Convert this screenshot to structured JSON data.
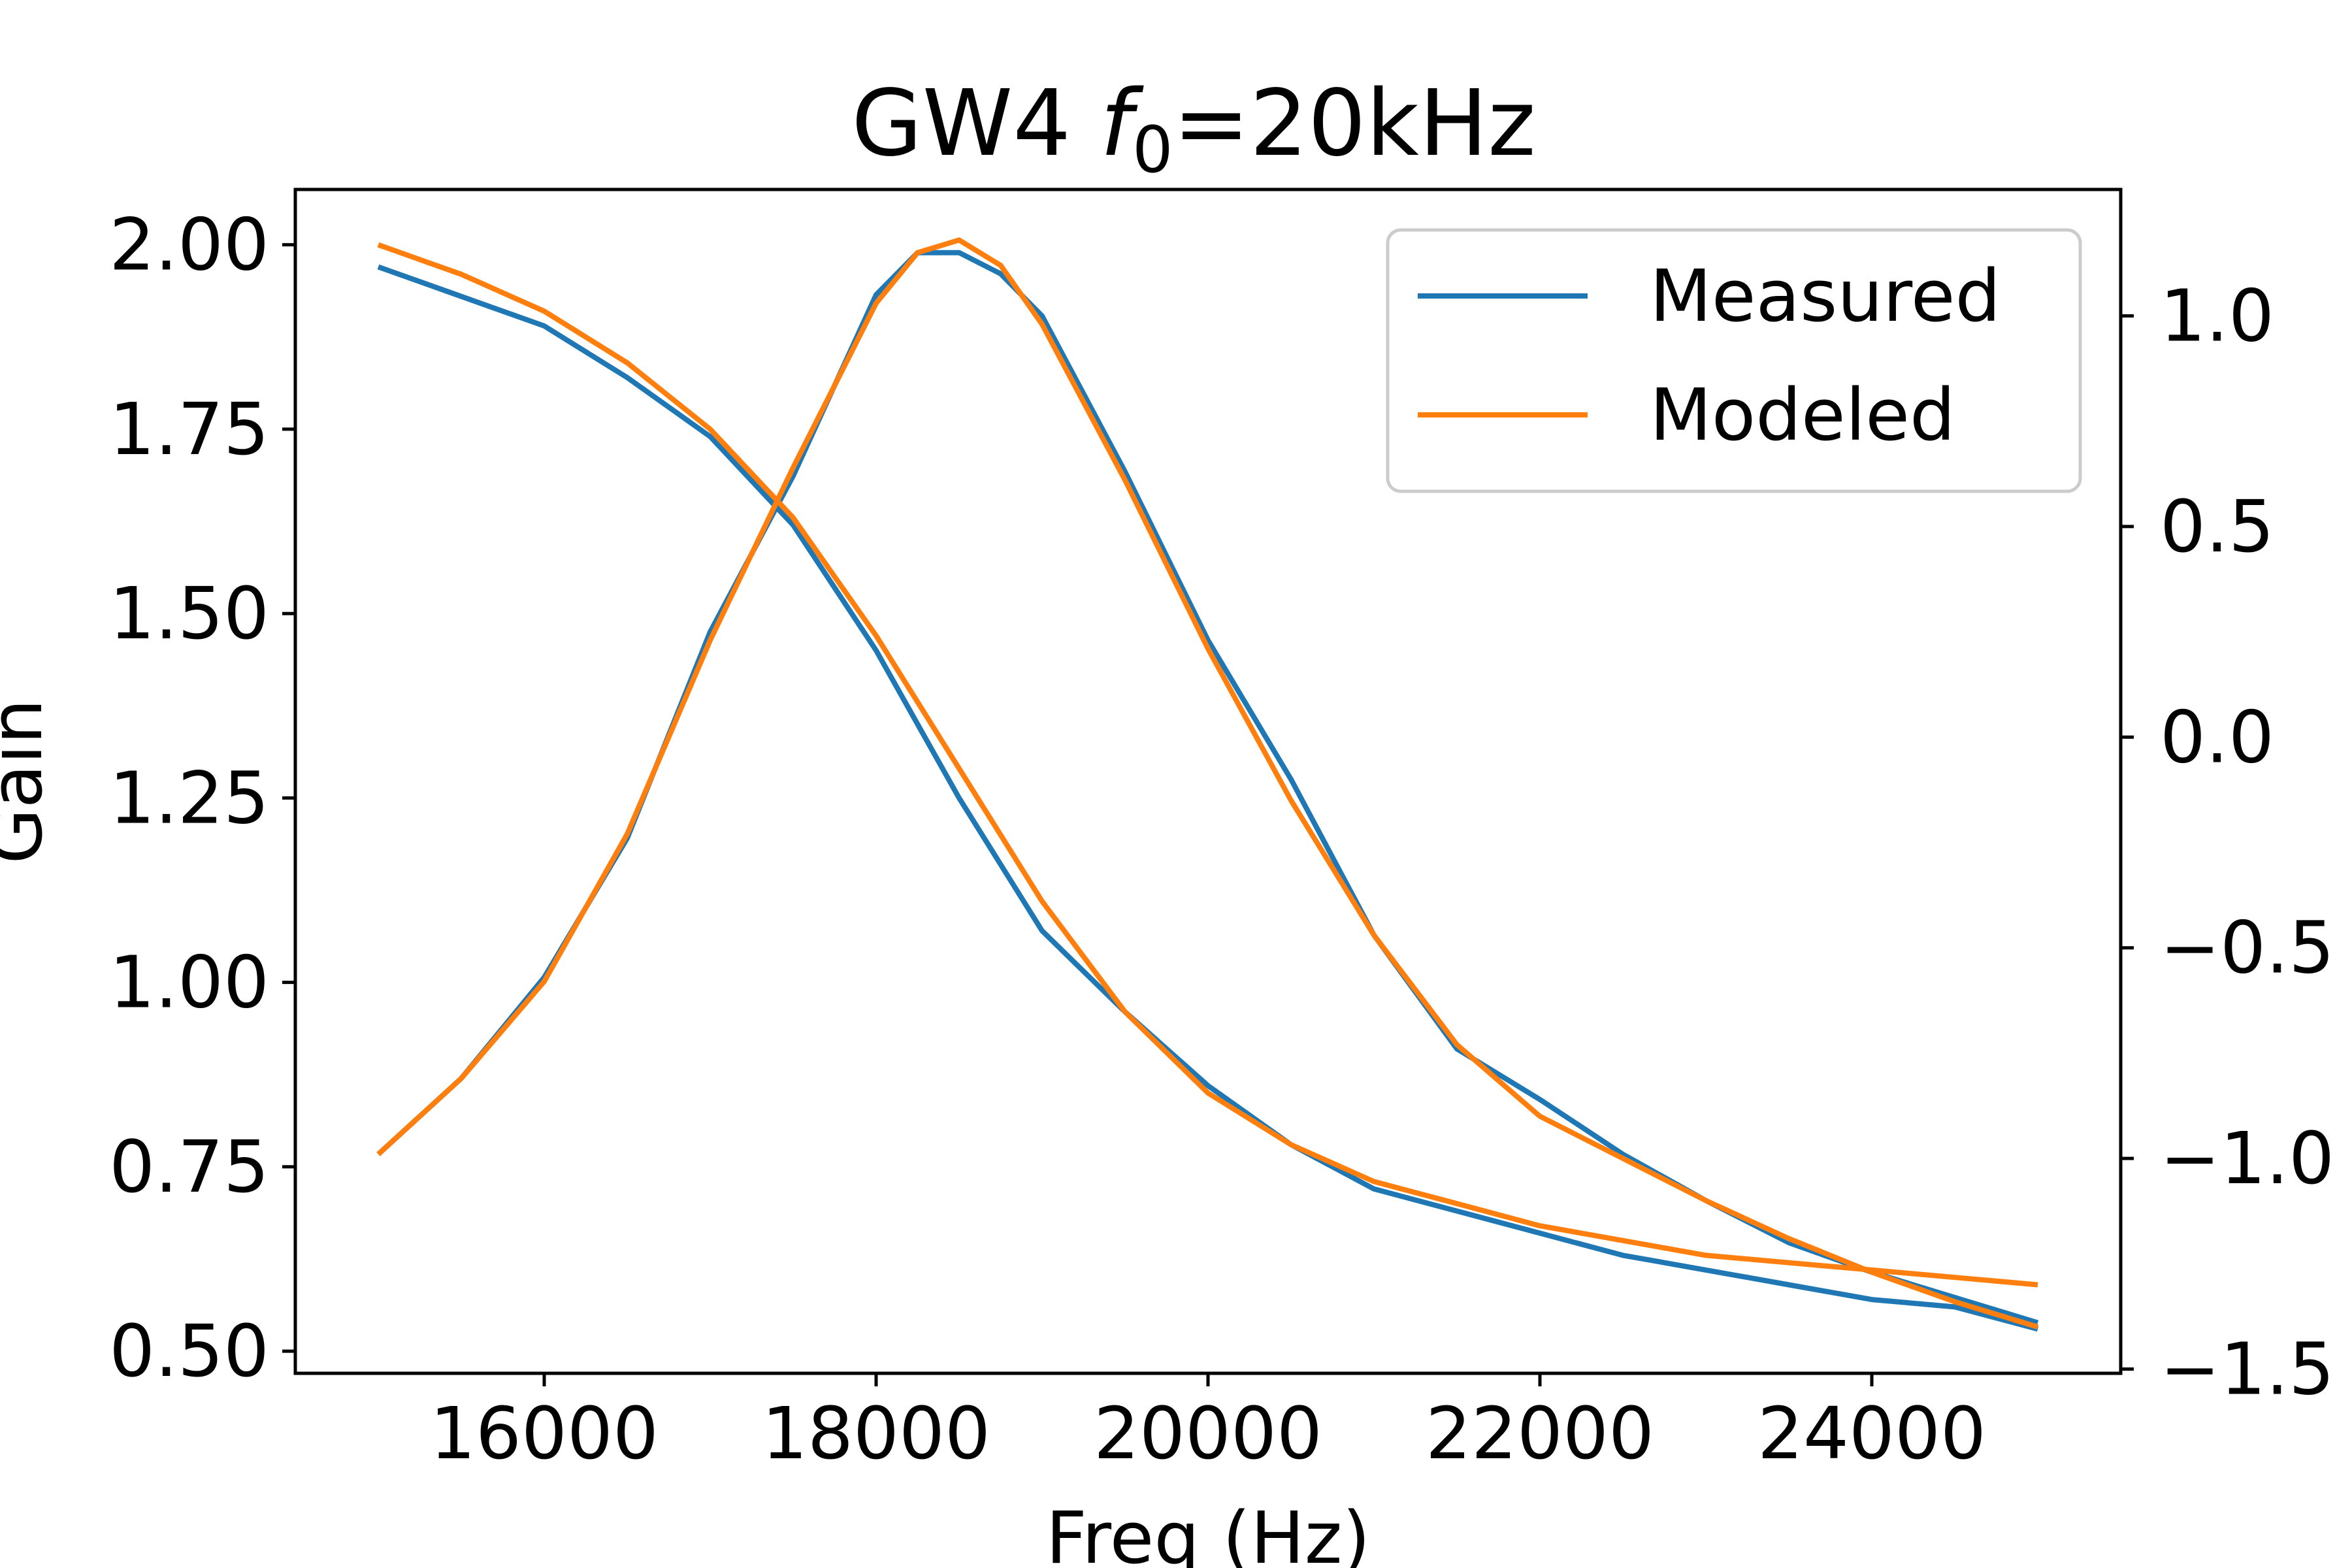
{
  "chart_data": {
    "type": "line",
    "title": {
      "prefix": "GW4 ",
      "var": "f",
      "sub": "0",
      "suffix": "=20kHz"
    },
    "xlabel": "Freq (Hz)",
    "ylabel": "Gain",
    "xlim": [
      14500,
      25500
    ],
    "ylim_left": [
      0.47,
      2.075
    ],
    "ylim_right": [
      -1.51,
      1.3
    ],
    "xticks": [
      16000,
      18000,
      20000,
      22000,
      24000
    ],
    "yticks_left": [
      "2.00",
      "1.75",
      "1.50",
      "1.25",
      "1.00",
      "0.75",
      "0.50"
    ],
    "yticks_right": [
      "1.0",
      "0.5",
      "0.0",
      "−0.5",
      "−1.0",
      "−1.5"
    ],
    "legend": {
      "location": "upper right",
      "entries": [
        "Measured",
        "Modeled"
      ]
    },
    "grid": false,
    "colors": {
      "measured": "#1f77b4",
      "modeled": "#ff7f0e"
    },
    "series": [
      {
        "name": "Measured",
        "axis": "left",
        "color": "#1f77b4",
        "x": [
          15000,
          15500,
          16000,
          16500,
          17000,
          17500,
          18000,
          18500,
          19000,
          19500,
          20000,
          20500,
          21000,
          21500,
          22000,
          22500,
          23000,
          23500,
          24000,
          24500,
          25000
        ],
        "y": [
          1.97,
          1.93,
          1.89,
          1.82,
          1.74,
          1.62,
          1.45,
          1.25,
          1.07,
          0.96,
          0.86,
          0.78,
          0.72,
          0.69,
          0.66,
          0.63,
          0.61,
          0.59,
          0.57,
          0.56,
          0.53
        ]
      },
      {
        "name": "Measured",
        "axis": "right",
        "color": "#1f77b4",
        "x": [
          15000,
          15500,
          16000,
          16500,
          17000,
          17500,
          18000,
          18250,
          18500,
          18750,
          19000,
          19500,
          20000,
          20500,
          21000,
          21500,
          22000,
          22500,
          23000,
          23500,
          24000,
          24500,
          25000
        ],
        "y": [
          -0.99,
          -0.81,
          -0.57,
          -0.24,
          0.25,
          0.62,
          1.05,
          1.15,
          1.15,
          1.1,
          1.0,
          0.63,
          0.23,
          -0.1,
          -0.47,
          -0.74,
          -0.86,
          -0.99,
          -1.1,
          -1.2,
          -1.27,
          -1.33,
          -1.39
        ]
      },
      {
        "name": "Modeled",
        "axis": "left",
        "color": "#ff7f0e",
        "x": [
          15000,
          15500,
          16000,
          16500,
          17000,
          17500,
          18000,
          18500,
          19000,
          19500,
          20000,
          20500,
          21000,
          21500,
          22000,
          22500,
          23000,
          23500,
          24000,
          24500,
          25000
        ],
        "y": [
          2.0,
          1.96,
          1.91,
          1.84,
          1.75,
          1.63,
          1.47,
          1.29,
          1.11,
          0.96,
          0.85,
          0.78,
          0.73,
          0.7,
          0.67,
          0.65,
          0.63,
          0.62,
          0.61,
          0.6,
          0.59
        ]
      },
      {
        "name": "Modeled",
        "axis": "right",
        "color": "#ff7f0e",
        "x": [
          15000,
          15500,
          16000,
          16500,
          17000,
          17500,
          18000,
          18250,
          18500,
          18750,
          19000,
          19500,
          20000,
          20500,
          21000,
          21500,
          22000,
          22500,
          23000,
          23500,
          24000,
          24500,
          25000
        ],
        "y": [
          -0.99,
          -0.81,
          -0.58,
          -0.23,
          0.23,
          0.64,
          1.03,
          1.15,
          1.18,
          1.12,
          0.98,
          0.61,
          0.21,
          -0.15,
          -0.47,
          -0.73,
          -0.9,
          -1.0,
          -1.1,
          -1.19,
          -1.27,
          -1.34,
          -1.4
        ]
      }
    ]
  }
}
